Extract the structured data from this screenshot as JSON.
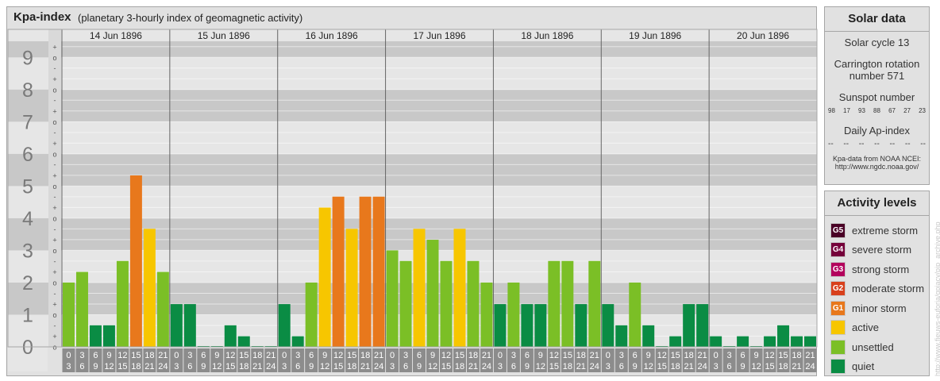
{
  "header": {
    "title": "Kpa-index",
    "subtitle": "(planetary 3-hourly index of geomagnetic activity)"
  },
  "chart_data": {
    "type": "bar",
    "title": "Kpa-index",
    "subtitle": "(planetary 3-hourly index of geomagnetic activity)",
    "ylim": [
      0,
      9.5
    ],
    "y_ticks": [
      "0",
      "1",
      "2",
      "3",
      "4",
      "5",
      "6",
      "7",
      "8",
      "9"
    ],
    "sub_ticks": [
      "-",
      "o",
      "+"
    ],
    "days": [
      "14 Jun 1896",
      "15 Jun 1896",
      "16 Jun 1896",
      "17 Jun 1896",
      "18 Jun 1896",
      "19 Jun 1896",
      "20 Jun 1896"
    ],
    "hour_bins": [
      [
        "0",
        "3"
      ],
      [
        "3",
        "6"
      ],
      [
        "6",
        "9"
      ],
      [
        "9",
        "12"
      ],
      [
        "12",
        "15"
      ],
      [
        "15",
        "18"
      ],
      [
        "18",
        "21"
      ],
      [
        "21",
        "24"
      ]
    ],
    "values": [
      [
        2.0,
        2.33,
        0.67,
        0.67,
        2.67,
        5.33,
        3.67,
        2.33
      ],
      [
        1.33,
        1.33,
        0.0,
        0.0,
        0.67,
        0.33,
        0.0,
        0.0
      ],
      [
        1.33,
        0.33,
        2.0,
        4.33,
        4.67,
        3.67,
        4.67,
        4.67
      ],
      [
        3.0,
        2.67,
        3.67,
        3.33,
        2.67,
        3.67,
        2.67,
        2.0
      ],
      [
        1.33,
        2.0,
        1.33,
        1.33,
        2.67,
        2.67,
        1.33,
        2.67
      ],
      [
        1.33,
        0.67,
        2.0,
        0.67,
        0.0,
        0.33,
        1.33,
        1.33
      ],
      [
        0.33,
        0.0,
        0.33,
        0.0,
        0.33,
        0.67,
        0.33,
        0.33
      ]
    ],
    "grid": true,
    "colors": {
      "quiet": "#0a8c44",
      "unsettled": "#7bbf26",
      "active": "#f7c600",
      "minor": "#e8781c",
      "plot_light": "#e6e6e6",
      "plot_dark": "#c8c8c8",
      "axis_box": "#8c8c8c"
    }
  },
  "solar": {
    "title": "Solar data",
    "cycle": "Solar cycle 13",
    "carrington_line1": "Carrington rotation",
    "carrington_line2": "number 571",
    "sunspot_label": "Sunspot number",
    "sunspots": [
      "98",
      "17",
      "93",
      "88",
      "67",
      "27",
      "23"
    ],
    "ap_label": "Daily Ap-index",
    "ap_values": [
      "--",
      "--",
      "--",
      "--",
      "--",
      "--",
      "--"
    ],
    "source_line1": "Kpa-data from NOAA NCEI:",
    "source_line2": "http://www.ngdc.noaa.gov/"
  },
  "activity": {
    "title": "Activity levels",
    "levels": [
      {
        "code": "G5",
        "label": "extreme storm",
        "color": "#4a0026"
      },
      {
        "code": "G4",
        "label": "severe storm",
        "color": "#75003a"
      },
      {
        "code": "G3",
        "label": "strong storm",
        "color": "#b3005c"
      },
      {
        "code": "G2",
        "label": "moderate storm",
        "color": "#d8401c"
      },
      {
        "code": "G1",
        "label": "minor storm",
        "color": "#e8781c"
      },
      {
        "code": "",
        "label": "active",
        "color": "#f7c600"
      },
      {
        "code": "",
        "label": "unsettled",
        "color": "#7bbf26"
      },
      {
        "code": "",
        "label": "quiet",
        "color": "#0a8c44"
      }
    ]
  },
  "credit": "http://www.fieuws-euforia/gpiacy/pjp_archive.php"
}
